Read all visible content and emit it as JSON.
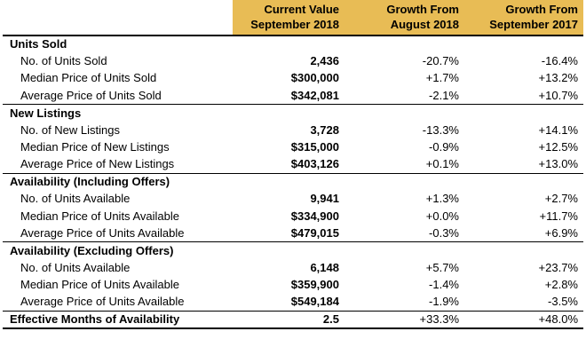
{
  "header": {
    "col1_line1": "Current Value",
    "col1_line2": "September 2018",
    "col2_line1": "Growth From",
    "col2_line2": "August 2018",
    "col3_line1": "Growth From",
    "col3_line2": "September 2017"
  },
  "sections": [
    {
      "title": "Units Sold",
      "rows": [
        {
          "label": "No. of Units Sold",
          "value": "2,436",
          "mom": "-20.7%",
          "yoy": "-16.4%"
        },
        {
          "label": "Median Price of Units Sold",
          "value": "$300,000",
          "mom": "+1.7%",
          "yoy": "+13.2%"
        },
        {
          "label": "Average Price of Units Sold",
          "value": "$342,081",
          "mom": "-2.1%",
          "yoy": "+10.7%"
        }
      ]
    },
    {
      "title": "New Listings",
      "rows": [
        {
          "label": "No. of New Listings",
          "value": "3,728",
          "mom": "-13.3%",
          "yoy": "+14.1%"
        },
        {
          "label": "Median Price of New Listings",
          "value": "$315,000",
          "mom": "-0.9%",
          "yoy": "+12.5%"
        },
        {
          "label": "Average Price of New Listings",
          "value": "$403,126",
          "mom": "+0.1%",
          "yoy": "+13.0%"
        }
      ]
    },
    {
      "title": "Availability (Including Offers)",
      "rows": [
        {
          "label": "No. of Units Available",
          "value": "9,941",
          "mom": "+1.3%",
          "yoy": "+2.7%"
        },
        {
          "label": "Median Price of Units Available",
          "value": "$334,900",
          "mom": "+0.0%",
          "yoy": "+11.7%"
        },
        {
          "label": "Average Price of Units Available",
          "value": "$479,015",
          "mom": "-0.3%",
          "yoy": "+6.9%"
        }
      ]
    },
    {
      "title": "Availability (Excluding Offers)",
      "rows": [
        {
          "label": "No. of Units Available",
          "value": "6,148",
          "mom": "+5.7%",
          "yoy": "+23.7%"
        },
        {
          "label": "Median Price of Units Available",
          "value": "$359,900",
          "mom": "-1.4%",
          "yoy": "+2.8%"
        },
        {
          "label": "Average Price of Units Available",
          "value": "$549,184",
          "mom": "-1.9%",
          "yoy": "-3.5%"
        }
      ]
    }
  ],
  "summary": {
    "label": "Effective Months of Availability",
    "value": "2.5",
    "mom": "+33.3%",
    "yoy": "+48.0%"
  },
  "colors": {
    "header_fill": "#e8bc55"
  }
}
